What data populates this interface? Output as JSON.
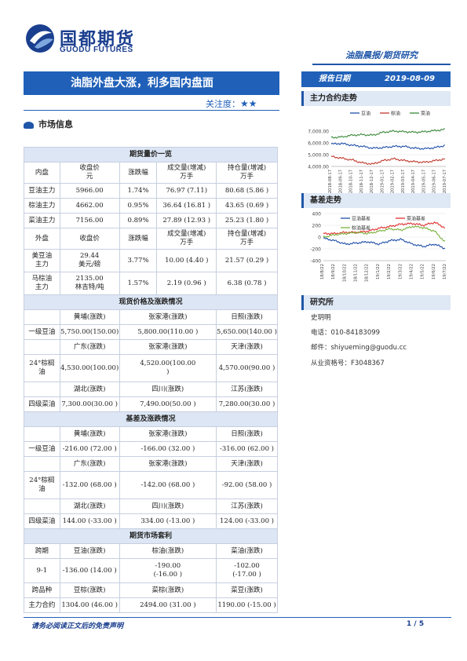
{
  "header": {
    "logo_cn": "国都期货",
    "logo_en": "GUODU FUTURES",
    "report_type": "油脂晨报/期货研究"
  },
  "title": "油脂外盘大涨，利多国内盘面",
  "report_date": {
    "label": "报告日期",
    "value": "2019-08-09"
  },
  "attention": {
    "label": "关注度：",
    "stars": "★★"
  },
  "market_info": "市场信息",
  "futures": {
    "title": "期货量价一览",
    "domestic_header": [
      "内盘",
      "收盘价\n元",
      "涨跌幅",
      "成交量(增减)\n万手",
      "持仓量(增减)\n万手"
    ],
    "domestic_rows": [
      [
        "豆油主力",
        "5966.00",
        "1.74%",
        "76.97 (7.11)",
        "80.68 (5.86 )"
      ],
      [
        "棕油主力",
        "4662.00",
        "0.95%",
        "36.64 (16.81 )",
        "43.65 (0.69 )"
      ],
      [
        "菜油主力",
        "7156.00",
        "0.89%",
        "27.89 (12.93 )",
        "25.23 (1.80 )"
      ]
    ],
    "foreign_header": [
      "外盘",
      "收盘价",
      "涨跌幅",
      "成交量(增减)\n万手",
      "持仓量(增减)\n万手"
    ],
    "foreign_rows": [
      [
        "美豆油\n主力",
        "29.44\n美元/磅",
        "3.77%",
        "10.00 (4.40 )",
        "21.57 (0.29 )"
      ],
      [
        "马棕油\n主力",
        "2135.00\n林吉特/吨",
        "1.57%",
        "2.19 (0.96 )",
        "6.38 (0.78 )"
      ]
    ]
  },
  "spot": {
    "title": "现货价格及涨跌情况",
    "region_row1": [
      "黄埔(涨跌)",
      "张家港(涨跌)",
      "日照(涨跌)"
    ],
    "soy": [
      "一级豆油",
      "5,750.00(150.00)",
      "5,800.00(110.00 )",
      "5,650.00(140.00 )"
    ],
    "region_row2": [
      "广东(涨跌)",
      "张家港(涨跌)",
      "天津(涨跌)"
    ],
    "palm": [
      "24°棕榈\n油",
      "4,530.00(100.00)",
      "4,520.00(100.00\n)",
      "4,570.00(90.00 )"
    ],
    "region_row3": [
      "湖北(涨跌)",
      "四川(涨跌)",
      "江苏(涨跌)"
    ],
    "rape": [
      "四级菜油",
      "7,300.00(30.00 )",
      "7,490.00(50.00 )",
      "7,280.00(30.00 )"
    ]
  },
  "basis": {
    "title": "基差及涨跌情况",
    "region_row1": [
      "黄埔(涨跌)",
      "张家港(涨跌)",
      "日照(涨跌)"
    ],
    "soy": [
      "一级豆油",
      "-216.00 (72.00 )",
      "-166.00 (32.00 )",
      "-316.00 (62.00 )"
    ],
    "region_row2": [
      "广东(涨跌)",
      "张家港(涨跌)",
      "天津(涨跌)"
    ],
    "palm": [
      "24°棕榈\n油",
      "-132.00 (68.00 )",
      "-142.00 (68.00 )",
      "-92.00 (58.00 )"
    ],
    "region_row3": [
      "湖北(涨跌)",
      "四川(涨跌)",
      "江苏(涨跌)"
    ],
    "rape": [
      "四级菜油",
      "144.00 (-33.00 )",
      "334.00 (-13.00 )",
      "124.00 (-33.00 )"
    ]
  },
  "arbitrage": {
    "title": "期货市场套利",
    "head1": [
      "跨期",
      "豆油(涨跌)",
      "棕油(涨跌)",
      "菜油(涨跌)"
    ],
    "row1": [
      "9-1",
      "-136.00 (14.00 )",
      "-190.00\n(-16.00 )",
      "-102.00\n(-17.00 )"
    ],
    "head2": [
      "跨品种",
      "豆棕(涨跌)",
      "菜棕(涨跌)",
      "菜豆(涨跌)"
    ],
    "row2": [
      "主力合约",
      "1304.00 (46.00 )",
      "2494.00 (31.00 )",
      "1190.00 (-15.00 )"
    ]
  },
  "main_contract_chart": {
    "heading": "主力合约走势",
    "chart_data": {
      "type": "line",
      "x": [
        "2018-08-17",
        "2018-09-17",
        "2018-10-17",
        "2018-11-17",
        "2018-12-17",
        "2019-01-17",
        "2019-02-17",
        "2019-03-17",
        "2019-04-17",
        "2019-05-17",
        "2019-06-17",
        "2019-07-17"
      ],
      "series": [
        {
          "name": "豆油",
          "values": [
            5900,
            5950,
            5800,
            5700,
            5550,
            5600,
            5700,
            5700,
            5550,
            5500,
            5600,
            5800
          ]
        },
        {
          "name": "棕油",
          "values": [
            4850,
            4700,
            4550,
            4300,
            4200,
            4500,
            4650,
            4500,
            4400,
            4350,
            4500,
            4650
          ]
        },
        {
          "name": "菜油",
          "values": [
            6450,
            6500,
            6650,
            6700,
            6650,
            6900,
            7000,
            6950,
            6900,
            6950,
            7050,
            7150
          ]
        }
      ],
      "ylim": [
        4000,
        8000
      ],
      "yticks": [
        "4,000.00",
        "5,000.00",
        "6,000.00",
        "7,000.00"
      ],
      "colors": [
        "#1f4fa8",
        "#c0392b",
        "#3a8a3a"
      ]
    }
  },
  "basis_chart": {
    "heading": "基差走势",
    "chart_data": {
      "type": "line",
      "x": [
        "18/8/22",
        "18/9/22",
        "18/10/22",
        "18/11/22",
        "18/12/22",
        "19/1/22",
        "19/2/22",
        "19/3/22",
        "19/4/22",
        "19/5/22",
        "19/6/22",
        "19/7/22"
      ],
      "series": [
        {
          "name": "豆油基差",
          "values": [
            -20,
            -60,
            -120,
            -100,
            -80,
            -120,
            -60,
            -40,
            -120,
            -160,
            -120,
            -200
          ]
        },
        {
          "name": "菜油基差",
          "values": [
            60,
            60,
            80,
            80,
            100,
            150,
            180,
            220,
            230,
            200,
            250,
            150
          ]
        },
        {
          "name": "棕油基差",
          "values": [
            0,
            40,
            60,
            80,
            60,
            100,
            140,
            120,
            180,
            160,
            100,
            -100
          ]
        }
      ],
      "ylim": [
        -400,
        400
      ],
      "yticks": [
        "-400",
        "-200",
        "0",
        "200",
        "400"
      ],
      "colors": [
        "#1f4fa8",
        "#e03030",
        "#7ab03a"
      ]
    }
  },
  "research": {
    "heading": "研究所",
    "name": "史玥明",
    "phone": "电话：010-84183099",
    "email": "邮件：shiyueming@guodu.cc",
    "license": "从业资格号：F3048367"
  },
  "footer": {
    "disclaimer": "请务必阅读正文后的免责声明",
    "page": "1 / 5"
  }
}
